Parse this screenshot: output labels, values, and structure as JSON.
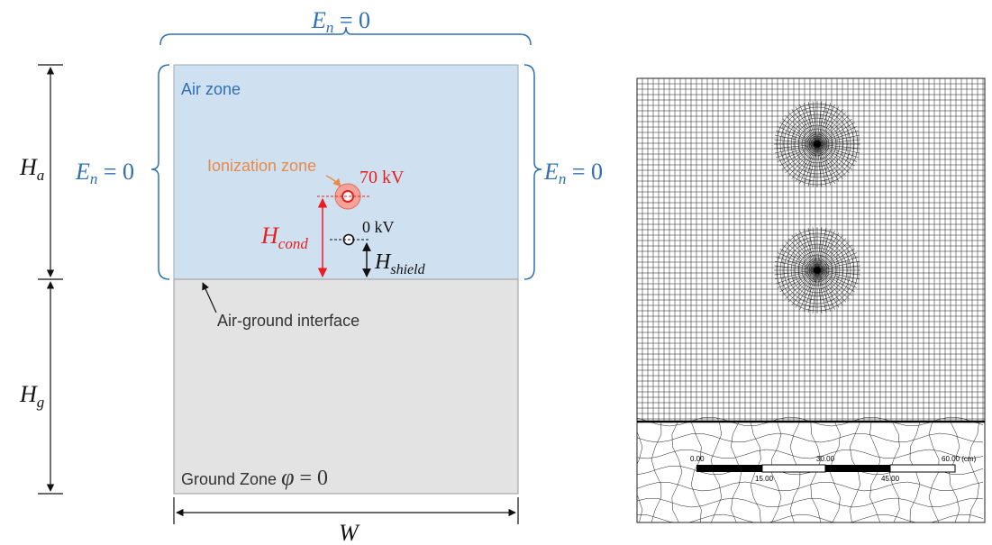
{
  "diagram": {
    "colors": {
      "air_fill": "#cfe0f1",
      "ground_fill": "#e3e3e3",
      "blue": "#2f6fb4",
      "red": "#e81e1e",
      "orange": "#e88a4a",
      "ion_fill": "#f4a39a",
      "black": "#111111"
    },
    "boundary": {
      "top": {
        "symbol": "E",
        "sub": "n",
        "rest": " = 0"
      },
      "left": {
        "symbol": "E",
        "sub": "n",
        "rest": " = 0"
      },
      "right": {
        "symbol": "E",
        "sub": "n",
        "rest": " = 0"
      }
    },
    "zones": {
      "air": "Air zone",
      "ionization": "Ionization zone",
      "interface": "Air-ground interface",
      "ground_prefix": "Ground Zone ",
      "ground_phi": "φ",
      "ground_rest": " = 0"
    },
    "voltages": {
      "conductor": "70 kV",
      "shield": "0 kV"
    },
    "dimensions": {
      "Ha": {
        "symbol": "H",
        "sub": "a"
      },
      "Hg": {
        "symbol": "H",
        "sub": "g"
      },
      "Hcond": {
        "symbol": "H",
        "sub": "cond"
      },
      "Hshield": {
        "symbol": "H",
        "sub": "shield"
      },
      "W": "W"
    },
    "mesh": {
      "colors": {
        "bg": "#ffffff",
        "line": "#1a1a1a"
      },
      "scale_ticks": [
        "0.00",
        "30.00",
        "60.00 (cm)"
      ],
      "scale_sub_ticks": [
        "15.00",
        "45.00"
      ],
      "icon": "mesh-grid-icon"
    }
  }
}
